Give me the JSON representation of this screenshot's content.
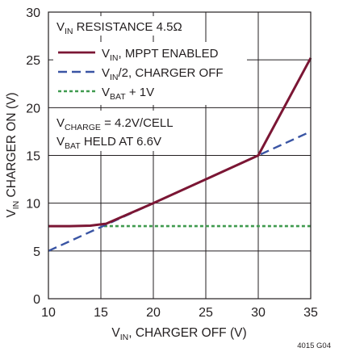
{
  "chart_data": {
    "type": "line",
    "xlim": [
      10,
      35
    ],
    "ylim": [
      0,
      30
    ],
    "x_ticks": [
      10,
      15,
      20,
      25,
      30,
      35
    ],
    "y_ticks": [
      0,
      5,
      10,
      15,
      20,
      25,
      30
    ],
    "grid": true,
    "legend_position": "top-left, inside plot",
    "xlabel": {
      "main": "V",
      "sub": "IN",
      "rest": ", CHARGER OFF (V)"
    },
    "ylabel": {
      "main": "V",
      "sub": "IN",
      "rest": " CHARGER ON (V)"
    },
    "annotation_top": {
      "main": "V",
      "sub": "IN",
      "rest": " RESISTANCE 4.5Ω"
    },
    "annotation_conditions": [
      {
        "main": "V",
        "sub": "CHARGE",
        "rest": " = 4.2V/CELL"
      },
      {
        "main": "V",
        "sub": "BAT",
        "rest": " HELD AT 6.6V"
      }
    ],
    "figure_id": "4015 G04",
    "series": [
      {
        "name": {
          "main": "V",
          "sub": "IN",
          "rest": ", MPPT ENABLED"
        },
        "color": "#7b1634",
        "style": "solid",
        "points": [
          [
            10,
            7.6
          ],
          [
            12,
            7.6
          ],
          [
            14,
            7.65
          ],
          [
            15.5,
            7.85
          ],
          [
            20,
            10
          ],
          [
            25,
            12.5
          ],
          [
            30,
            15
          ],
          [
            35,
            25.2
          ]
        ]
      },
      {
        "name": {
          "main": "V",
          "sub": "IN",
          "rest": "/2, CHARGER OFF"
        },
        "color": "#3a55a4",
        "style": "dashed",
        "points": [
          [
            10,
            5
          ],
          [
            35,
            17.5
          ]
        ]
      },
      {
        "name": {
          "main": "V",
          "sub": "BAT",
          "rest": " + 1V"
        },
        "color": "#3f9a4e",
        "style": "dotted",
        "points": [
          [
            15.3,
            7.6
          ],
          [
            35,
            7.6
          ]
        ]
      }
    ]
  }
}
